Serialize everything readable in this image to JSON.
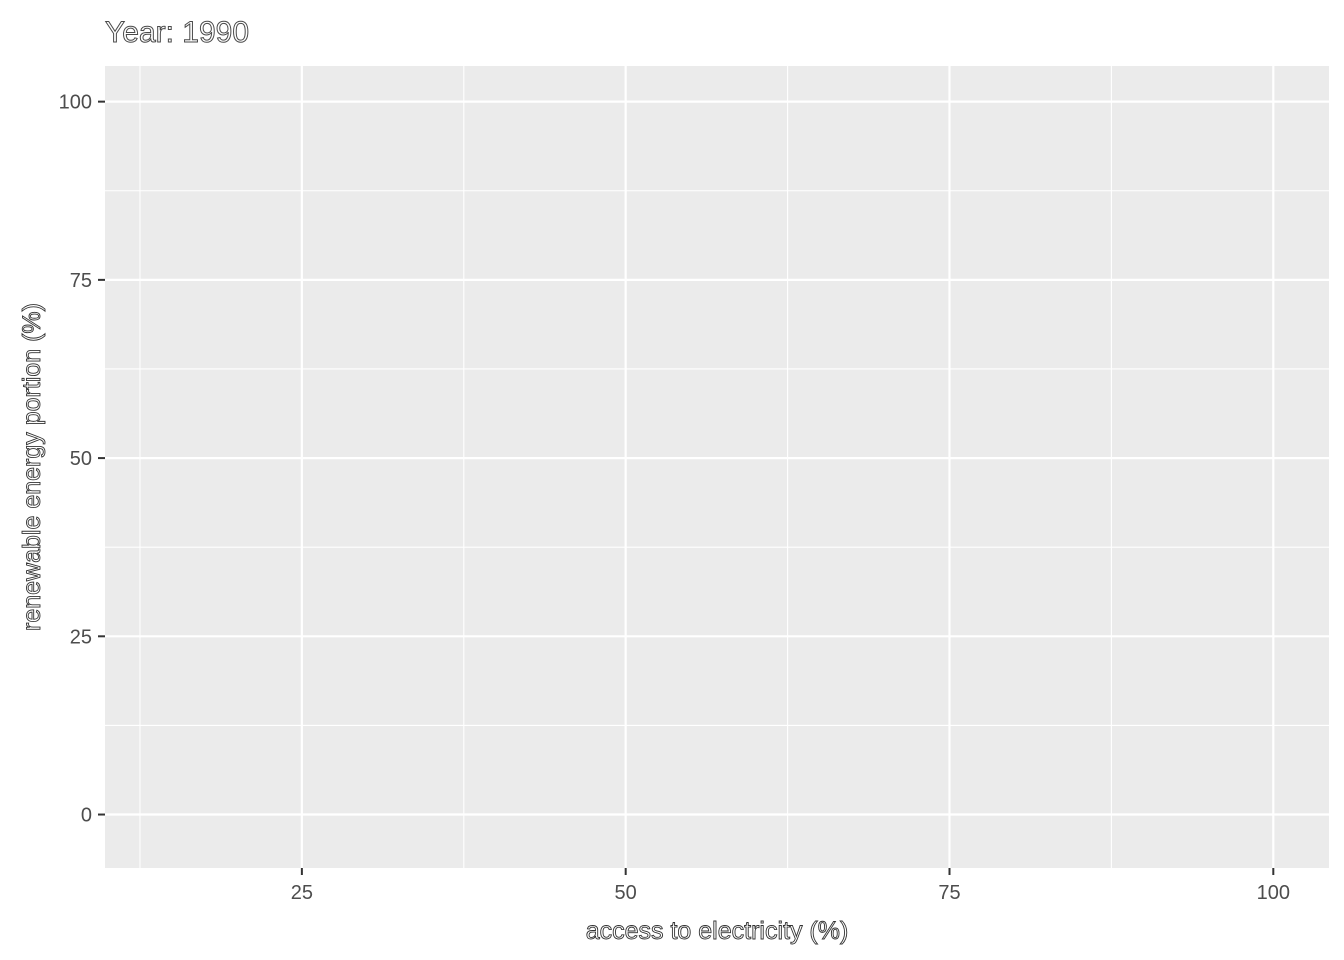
{
  "chart_data": {
    "type": "scatter",
    "title": "Year: 1990",
    "xlabel": "access to electricity (%)",
    "ylabel": "renewable energy portion (%)",
    "xlim": [
      9.8,
      104.3
    ],
    "ylim": [
      -7.5,
      105
    ],
    "x_ticks": [
      25,
      50,
      75,
      100
    ],
    "x_minor_ticks": [
      12.5,
      37.5,
      62.5,
      87.5
    ],
    "y_ticks": [
      0,
      25,
      50,
      75,
      100
    ],
    "y_minor_ticks": [
      12.5,
      37.5,
      62.5,
      87.5
    ],
    "grid": true,
    "panel_color": "#ebebeb",
    "grid_color": "#ffffff",
    "points": []
  }
}
